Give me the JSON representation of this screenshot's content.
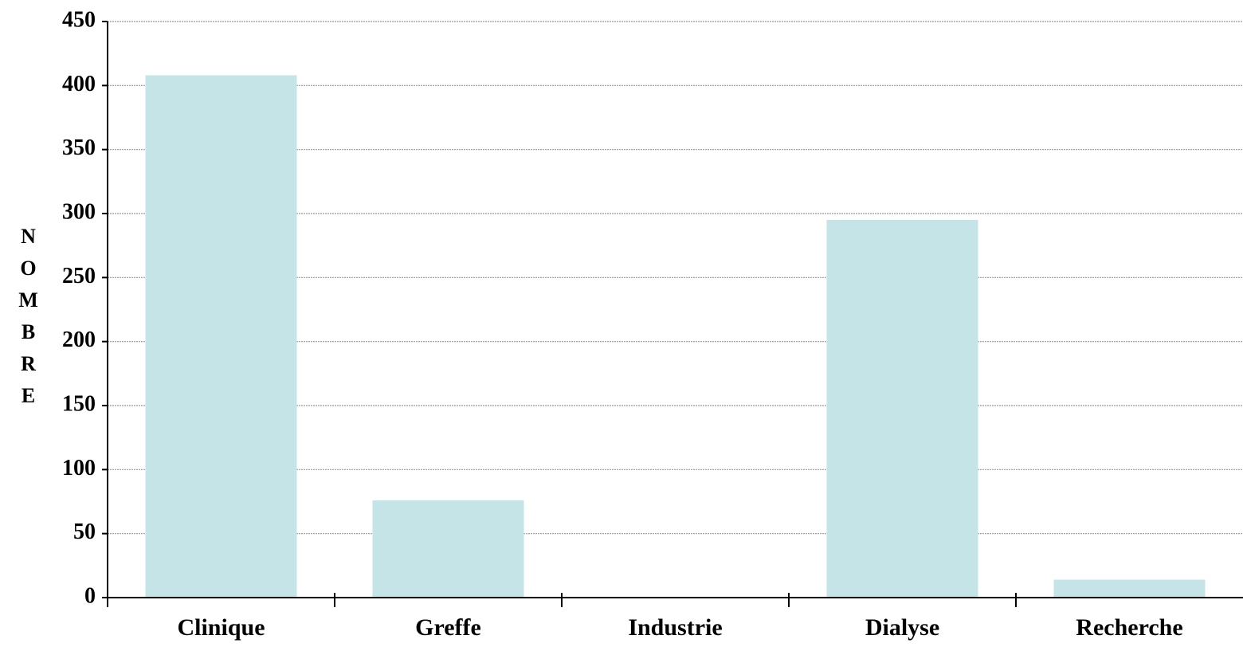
{
  "chart_data": {
    "type": "bar",
    "y_label": "NOMBRE",
    "categories": [
      "Clinique",
      "Greffe",
      "Industrie",
      "Dialyse",
      "Recherche"
    ],
    "values": [
      408,
      76,
      0,
      295,
      14
    ],
    "color": "#c5e4e7",
    "ylim": [
      0,
      450
    ],
    "yticks": [
      0,
      50,
      100,
      150,
      200,
      250,
      300,
      350,
      400,
      450
    ],
    "grid": true
  }
}
